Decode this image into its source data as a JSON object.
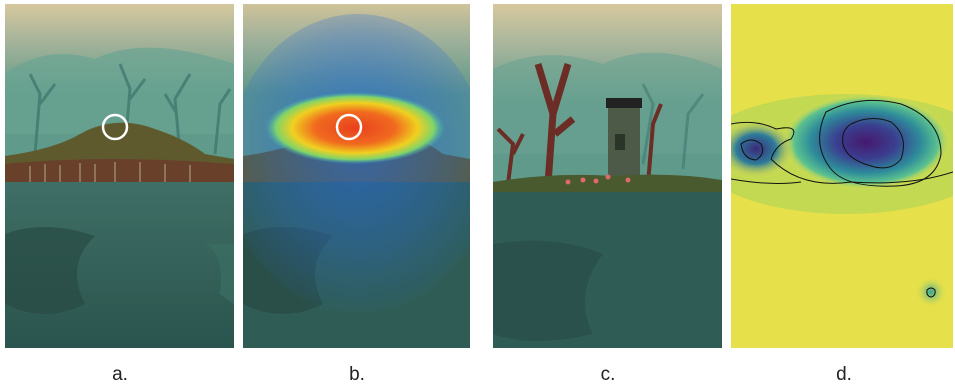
{
  "panels": [
    {
      "id": "a",
      "caption": "a."
    },
    {
      "id": "b",
      "caption": "b."
    },
    {
      "id": "c",
      "caption": "c."
    },
    {
      "id": "d",
      "caption": "d."
    }
  ],
  "colors": {
    "sky_top": "#d8c9a0",
    "fog": "#5f9a8a",
    "water": "#2f5d55",
    "heat_hot": "#e8401e",
    "heat_warm": "#f0d020",
    "heat_cool": "#2a6ad0",
    "density_low": "#e9e24a",
    "density_mid": "#2ea69a",
    "density_high": "#46196e",
    "marker": "#ffffff"
  },
  "icons": [
    "gaze-marker-circle"
  ]
}
